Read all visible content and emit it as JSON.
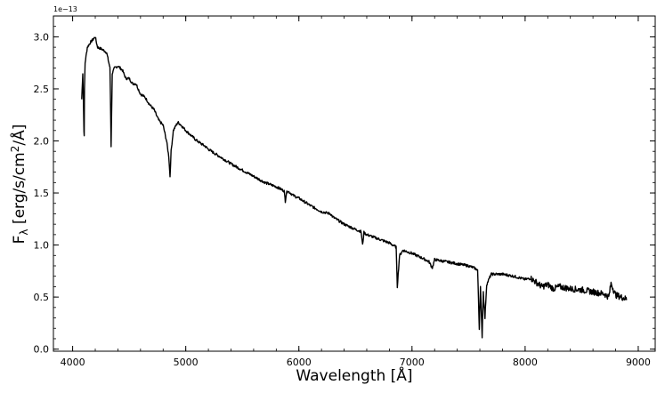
{
  "chart_data": {
    "type": "line",
    "title": "",
    "xlabel": "Wavelength [Å]",
    "ylabel": "Fλ [erg/s/cm²/Å]",
    "ylabel_parts": {
      "main": "F",
      "sub": "λ",
      "unit_a": " [erg/s/cm",
      "sup": "2",
      "unit_b": "/Å]"
    },
    "offset_text": "1e−13",
    "xlim": [
      3830,
      9150
    ],
    "ylim": [
      -0.02,
      3.2
    ],
    "x_ticks": [
      4000,
      5000,
      6000,
      7000,
      8000,
      9000
    ],
    "x_tick_labels": [
      "4000",
      "5000",
      "6000",
      "7000",
      "8000",
      "9000"
    ],
    "y_ticks": [
      0.0,
      0.5,
      1.0,
      1.5,
      2.0,
      2.5,
      3.0
    ],
    "y_tick_labels": [
      "0.0",
      "0.5",
      "1.0",
      "1.5",
      "2.0",
      "2.5",
      "3.0"
    ],
    "x_minor_step": 200,
    "y_minor_step": 0.1,
    "grid": false,
    "legend": "none",
    "line_color": "#000000",
    "series": [
      {
        "x": [
          4080,
          4090,
          4100,
          4102,
          4105,
          4110,
          4130,
          4160,
          4200,
          4220,
          4260,
          4300,
          4330,
          4340,
          4350,
          4370,
          4400,
          4440,
          4470,
          4500,
          4530,
          4560,
          4600,
          4640,
          4680,
          4720,
          4760,
          4800,
          4830,
          4850,
          4861,
          4870,
          4890,
          4930,
          4960,
          5000,
          5050,
          5100,
          5170,
          5200,
          5270,
          5300,
          5400,
          5500,
          5600,
          5700,
          5800,
          5870,
          5880,
          5890,
          5900,
          5960,
          6000,
          6100,
          6200,
          6280,
          6300,
          6400,
          6500,
          6550,
          6563,
          6575,
          6600,
          6700,
          6800,
          6860,
          6870,
          6890,
          6920,
          7000,
          7100,
          7150,
          7180,
          7200,
          7250,
          7300,
          7400,
          7500,
          7550,
          7580,
          7595,
          7605,
          7620,
          7630,
          7645,
          7660,
          7700,
          7800,
          7900,
          8000,
          8050,
          8100,
          8150,
          8200,
          8250,
          8300,
          8400,
          8500,
          8600,
          8700,
          8740,
          8760,
          8800,
          8850,
          8900
        ],
        "y": [
          2.4,
          2.65,
          2.1,
          2.04,
          2.5,
          2.75,
          2.9,
          2.95,
          3.0,
          2.9,
          2.88,
          2.85,
          2.7,
          1.95,
          2.65,
          2.7,
          2.72,
          2.68,
          2.6,
          2.6,
          2.55,
          2.55,
          2.45,
          2.42,
          2.35,
          2.3,
          2.2,
          2.15,
          2.0,
          1.85,
          1.66,
          1.9,
          2.1,
          2.18,
          2.15,
          2.1,
          2.05,
          2.0,
          1.95,
          1.92,
          1.87,
          1.85,
          1.78,
          1.72,
          1.66,
          1.6,
          1.56,
          1.52,
          1.42,
          1.5,
          1.52,
          1.47,
          1.45,
          1.38,
          1.32,
          1.3,
          1.27,
          1.2,
          1.15,
          1.13,
          1.0,
          1.12,
          1.1,
          1.06,
          1.02,
          0.98,
          0.6,
          0.9,
          0.95,
          0.92,
          0.87,
          0.84,
          0.78,
          0.86,
          0.85,
          0.84,
          0.82,
          0.8,
          0.78,
          0.76,
          0.2,
          0.6,
          0.12,
          0.55,
          0.3,
          0.62,
          0.72,
          0.72,
          0.7,
          0.67,
          0.68,
          0.64,
          0.6,
          0.62,
          0.58,
          0.6,
          0.58,
          0.57,
          0.55,
          0.53,
          0.5,
          0.63,
          0.52,
          0.5,
          0.48
        ]
      }
    ]
  }
}
